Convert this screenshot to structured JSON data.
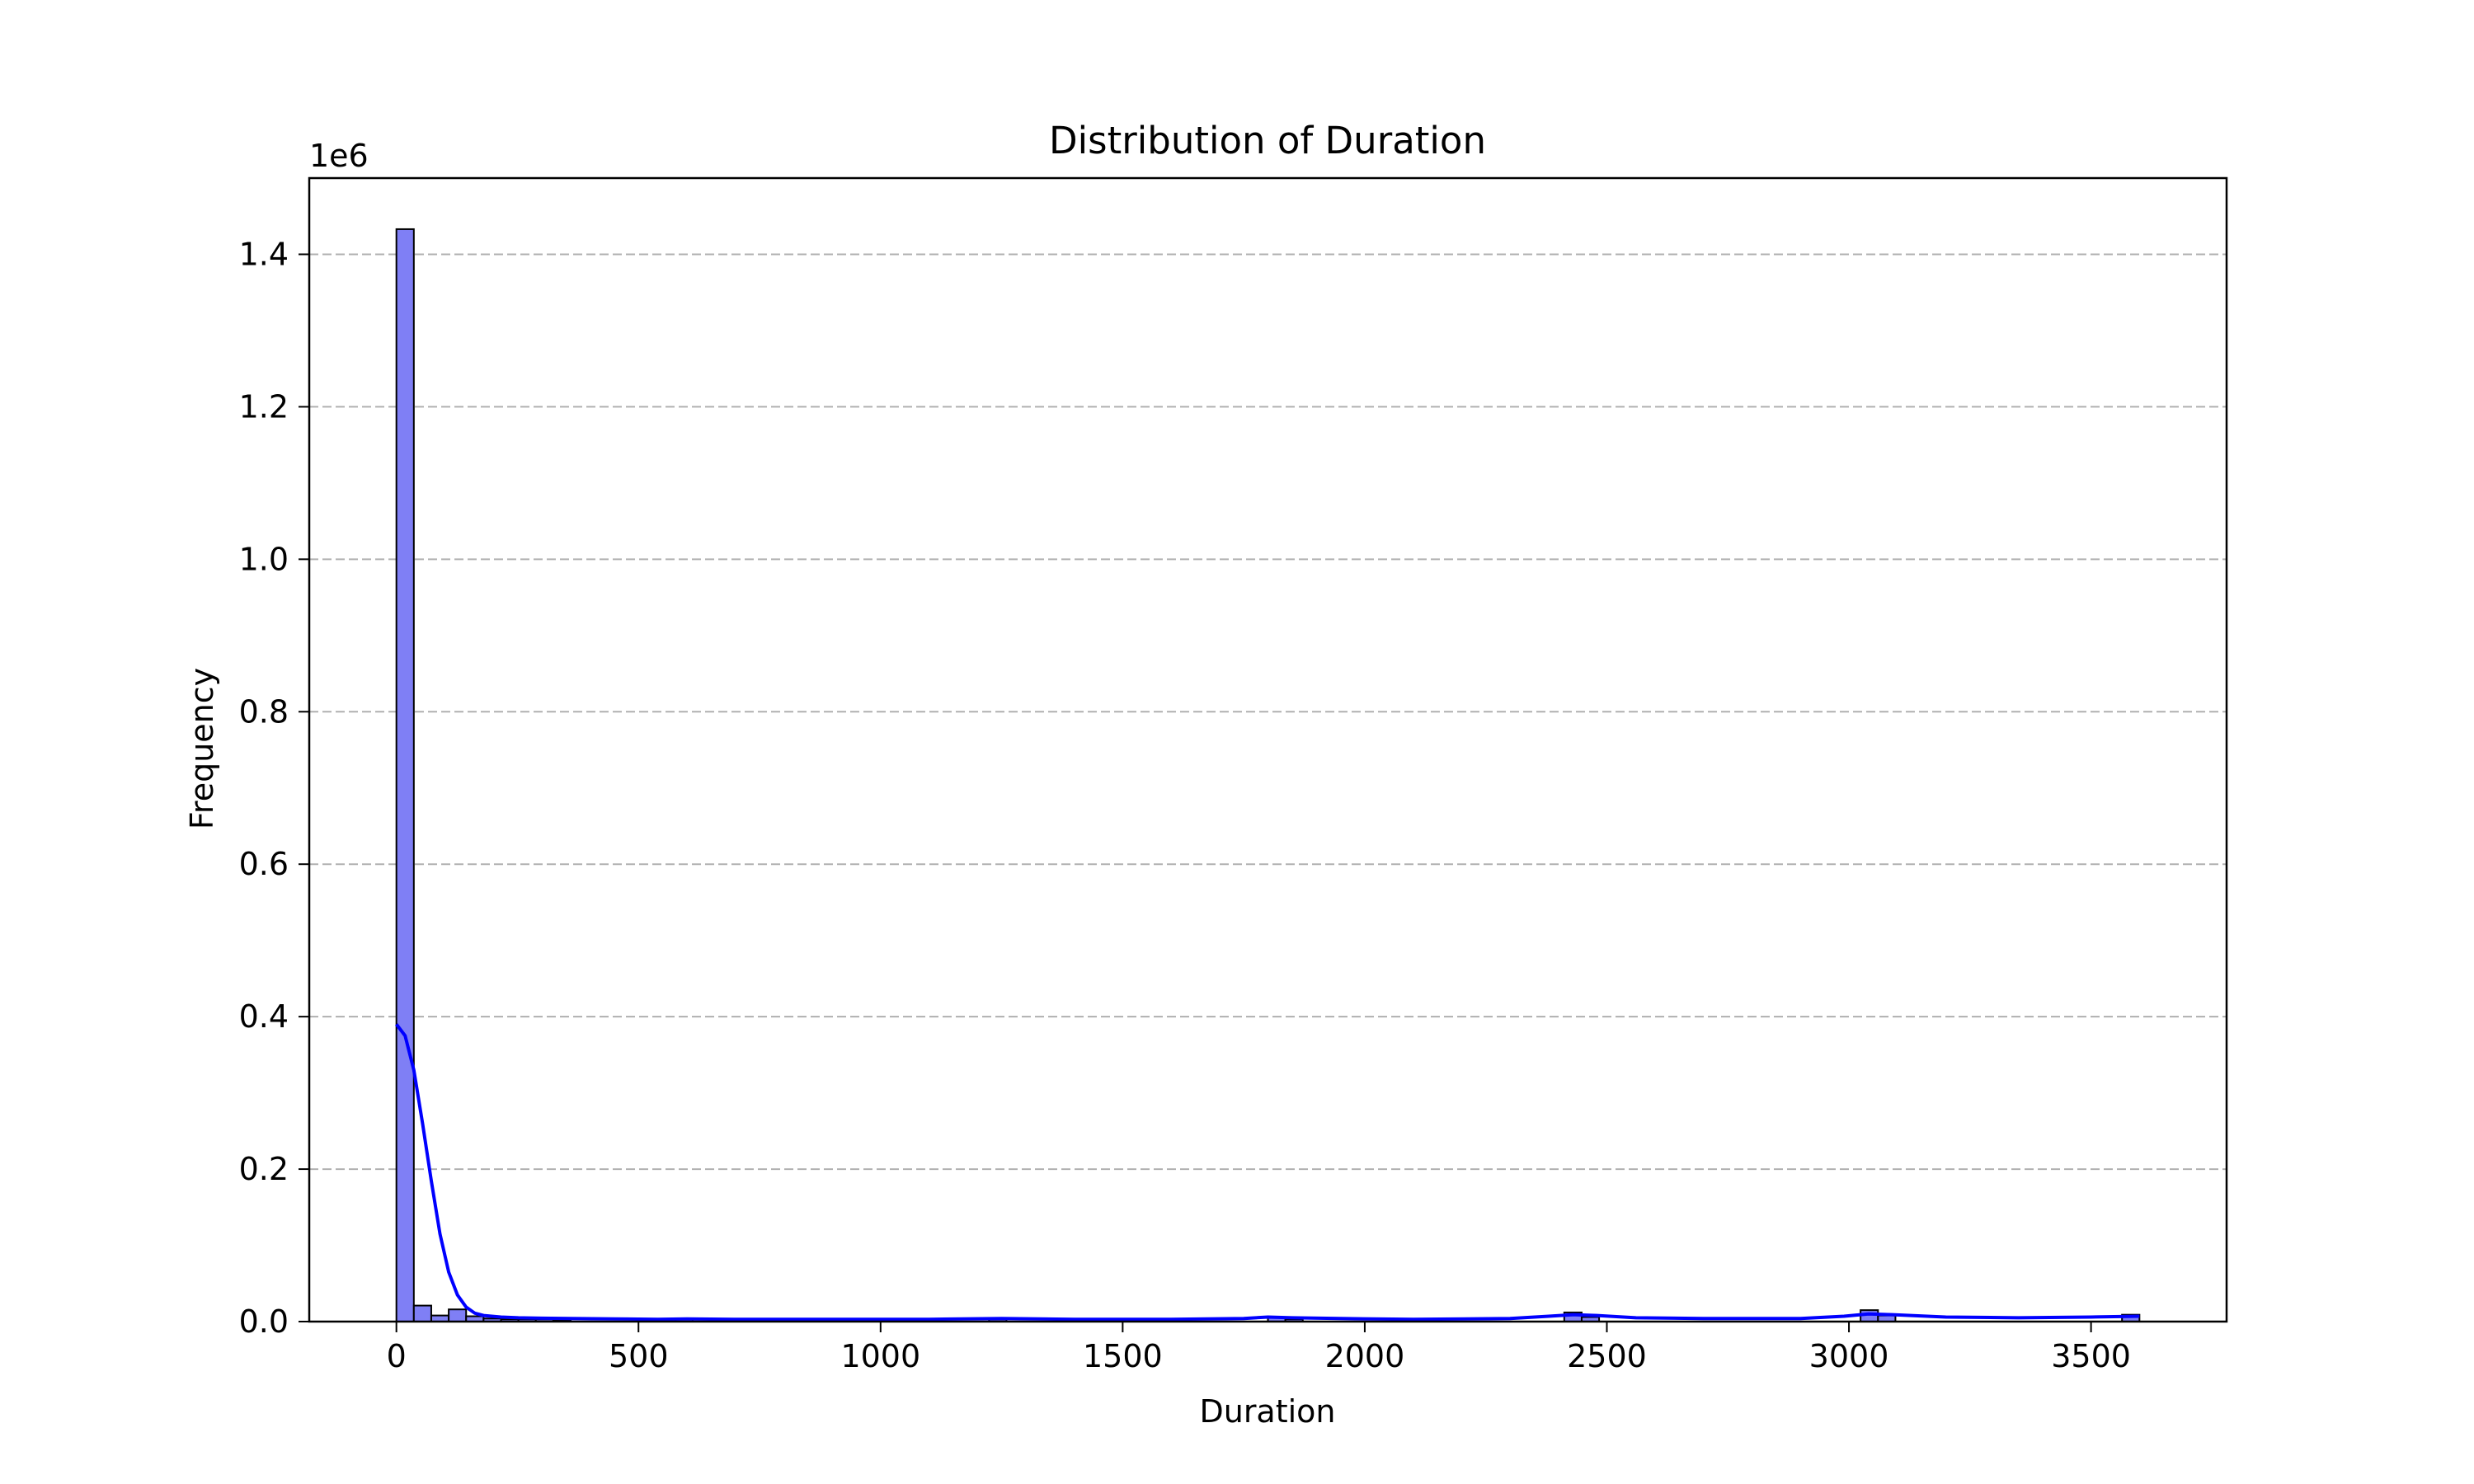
{
  "chart_data": {
    "type": "bar",
    "title": "Distribution of Duration",
    "xlabel": "Duration",
    "ylabel": "Frequency",
    "y_offset_label": "1e6",
    "xlim": [
      -180,
      3780
    ],
    "ylim": [
      0,
      1.5
    ],
    "x_ticks": [
      0,
      500,
      1000,
      1500,
      2000,
      2500,
      3000,
      3500
    ],
    "x_tick_labels": [
      "0",
      "500",
      "1000",
      "1500",
      "2000",
      "2500",
      "3000",
      "3500"
    ],
    "y_ticks": [
      0,
      0.2,
      0.4,
      0.6,
      0.8,
      1.0,
      1.2,
      1.4
    ],
    "y_tick_labels": [
      "0.0",
      "0.2",
      "0.4",
      "0.6",
      "0.8",
      "1.0",
      "1.2",
      "1.4"
    ],
    "grid": "y-dashed",
    "bin_width": 36,
    "bins": [
      {
        "x0": 0,
        "value": 1.433
      },
      {
        "x0": 36,
        "value": 0.021
      },
      {
        "x0": 72,
        "value": 0.008
      },
      {
        "x0": 108,
        "value": 0.016
      },
      {
        "x0": 144,
        "value": 0.007
      },
      {
        "x0": 180,
        "value": 0.004
      },
      {
        "x0": 216,
        "value": 0.003
      },
      {
        "x0": 252,
        "value": 0.003
      },
      {
        "x0": 288,
        "value": 0.003
      },
      {
        "x0": 324,
        "value": 0.002
      },
      {
        "x0": 576,
        "value": 0.003
      },
      {
        "x0": 1224,
        "value": 0.003
      },
      {
        "x0": 1800,
        "value": 0.005
      },
      {
        "x0": 1836,
        "value": 0.003
      },
      {
        "x0": 2412,
        "value": 0.012
      },
      {
        "x0": 2448,
        "value": 0.006
      },
      {
        "x0": 3024,
        "value": 0.015
      },
      {
        "x0": 3060,
        "value": 0.008
      },
      {
        "x0": 3564,
        "value": 0.009
      }
    ],
    "kde": {
      "x": [
        0,
        18,
        36,
        54,
        72,
        90,
        108,
        126,
        144,
        162,
        180,
        216,
        252,
        300,
        360,
        450,
        540,
        600,
        700,
        900,
        1100,
        1250,
        1400,
        1600,
        1750,
        1800,
        1850,
        1950,
        2100,
        2300,
        2380,
        2430,
        2480,
        2560,
        2700,
        2900,
        2990,
        3040,
        3090,
        3200,
        3350,
        3500,
        3600
      ],
      "y": [
        0.39,
        0.375,
        0.33,
        0.26,
        0.185,
        0.115,
        0.065,
        0.035,
        0.019,
        0.011,
        0.008,
        0.006,
        0.005,
        0.0045,
        0.004,
        0.0035,
        0.003,
        0.0035,
        0.003,
        0.003,
        0.003,
        0.004,
        0.003,
        0.003,
        0.004,
        0.006,
        0.005,
        0.004,
        0.003,
        0.004,
        0.007,
        0.009,
        0.008,
        0.005,
        0.004,
        0.004,
        0.007,
        0.01,
        0.009,
        0.006,
        0.005,
        0.006,
        0.007
      ]
    },
    "colors": {
      "bar_fill": "#7f7ff5",
      "bar_edge": "#000000",
      "kde_line": "#0000ff",
      "grid": "#b0b0b0"
    }
  }
}
